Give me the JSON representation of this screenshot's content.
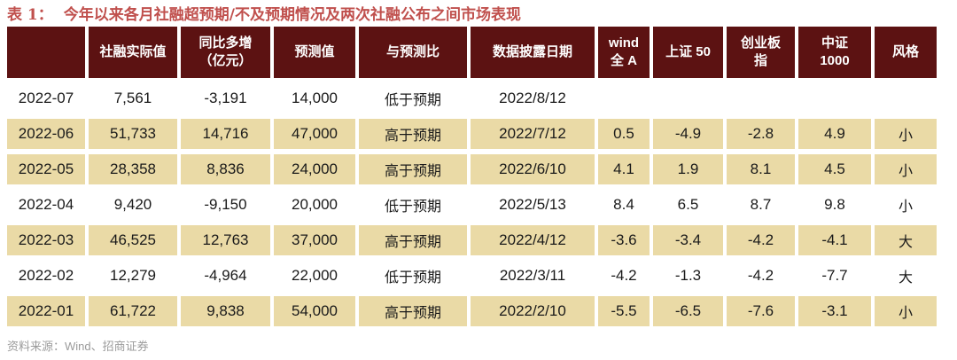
{
  "page": {
    "title_label": "表 1：",
    "title_text": "今年以来各月社融超预期/不及预期情况及两次社融公布之间市场表现",
    "source_note": "资料来源：Wind、招商证券"
  },
  "colors": {
    "header_bg": "#5C1212",
    "header_text": "#FFFFFF",
    "highlight_row_bg": "#EADAA6",
    "title_color": "#C0504D",
    "body_text": "#1A1A1A",
    "source_text": "#9B9B9B"
  },
  "table": {
    "columns": [
      {
        "id": "month",
        "lines": [
          ""
        ]
      },
      {
        "id": "actual-value",
        "lines": [
          "社融实际值"
        ]
      },
      {
        "id": "yoy-increase",
        "lines": [
          "同比多增",
          "（亿元）"
        ]
      },
      {
        "id": "forecast-value",
        "lines": [
          "预测值"
        ]
      },
      {
        "id": "vs-forecast",
        "lines": [
          "与预测比"
        ]
      },
      {
        "id": "disclosure-date",
        "lines": [
          "数据披露日期"
        ]
      },
      {
        "id": "wind-all-a",
        "lines": [
          "wind",
          "全 A"
        ]
      },
      {
        "id": "sse-50",
        "lines": [
          "上证 50"
        ]
      },
      {
        "id": "chinext-index",
        "lines": [
          "创业板",
          "指"
        ]
      },
      {
        "id": "csi-1000",
        "lines": [
          "中证",
          "1000"
        ]
      },
      {
        "id": "style",
        "lines": [
          "风格"
        ]
      }
    ],
    "rows": [
      {
        "highlight": false,
        "cells": [
          "2022-07",
          "7,561",
          "-3,191",
          "14,000",
          "低于预期",
          "2022/8/12",
          "",
          "",
          "",
          "",
          ""
        ]
      },
      {
        "highlight": true,
        "cells": [
          "2022-06",
          "51,733",
          "14,716",
          "47,000",
          "高于预期",
          "2022/7/12",
          "0.5",
          "-4.9",
          "-2.8",
          "4.9",
          "小"
        ]
      },
      {
        "highlight": true,
        "cells": [
          "2022-05",
          "28,358",
          "8,836",
          "24,000",
          "高于预期",
          "2022/6/10",
          "4.1",
          "1.9",
          "8.1",
          "4.5",
          "小"
        ]
      },
      {
        "highlight": false,
        "cells": [
          "2022-04",
          "9,420",
          "-9,150",
          "20,000",
          "低于预期",
          "2022/5/13",
          "8.4",
          "6.5",
          "8.7",
          "9.8",
          "小"
        ]
      },
      {
        "highlight": true,
        "cells": [
          "2022-03",
          "46,525",
          "12,763",
          "37,000",
          "高于预期",
          "2022/4/12",
          "-3.6",
          "-3.4",
          "-4.2",
          "-4.1",
          "大"
        ]
      },
      {
        "highlight": false,
        "cells": [
          "2022-02",
          "12,279",
          "-4,964",
          "22,000",
          "低于预期",
          "2022/3/11",
          "-4.2",
          "-1.3",
          "-4.2",
          "-7.7",
          "大"
        ]
      },
      {
        "highlight": true,
        "cells": [
          "2022-01",
          "61,722",
          "9,838",
          "54,000",
          "高于预期",
          "2022/2/10",
          "-5.5",
          "-6.5",
          "-7.6",
          "-3.1",
          "小"
        ]
      }
    ]
  }
}
